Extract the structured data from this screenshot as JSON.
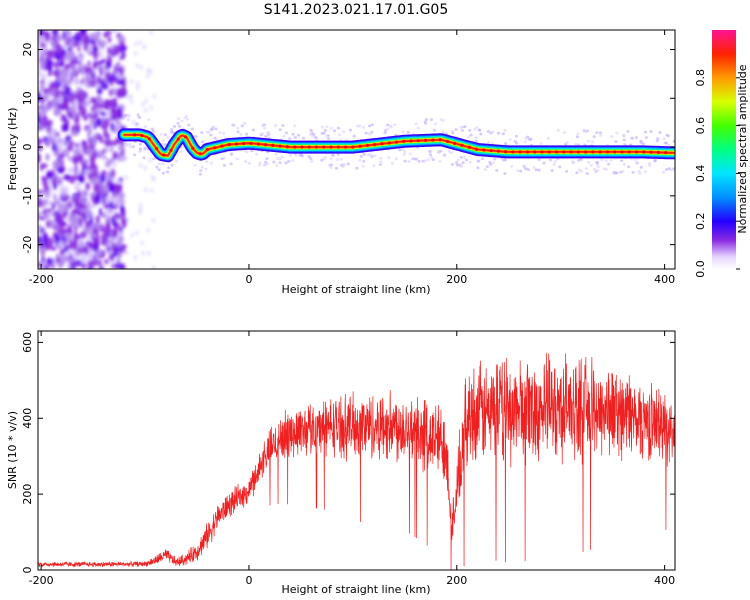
{
  "title": "S141.2023.021.17.01.G05",
  "chart_data": [
    {
      "type": "heatmap",
      "xlabel": "Height of straight line (km)",
      "ylabel": "Frequency (Hz)",
      "xlim": [
        -203,
        410
      ],
      "ylim": [
        -25,
        24
      ],
      "xticks": [
        -200,
        0,
        200,
        400
      ],
      "yticks": [
        -20,
        -10,
        0,
        10,
        20
      ],
      "colorbar": {
        "label": "Normalized spectral amplitude",
        "range": [
          0,
          1
        ],
        "ticks": [
          0.0,
          0.2,
          0.4,
          0.6,
          0.8
        ]
      },
      "noise_region_x": [
        -203,
        -120
      ],
      "frequency_ridge": {
        "x": [
          -120,
          -105,
          -97,
          -90,
          -85,
          -78,
          -72,
          -65,
          -60,
          -55,
          -50,
          -45,
          -40,
          -30,
          -20,
          0,
          40,
          100,
          150,
          185,
          220,
          250,
          300,
          350,
          380,
          410
        ],
        "y": [
          2.5,
          2.5,
          2.0,
          0.0,
          -1.5,
          -1.8,
          0.5,
          2.5,
          2.0,
          0.0,
          -1.2,
          -1.5,
          -0.5,
          0.0,
          0.5,
          0.8,
          0.0,
          0.0,
          1.2,
          1.5,
          -0.5,
          -1.0,
          -1.0,
          -1.0,
          -1.0,
          -1.2
        ]
      }
    },
    {
      "type": "line",
      "xlabel": "Height of straight line (km)",
      "ylabel": "SNR (10 * v/v)",
      "xlim": [
        -203,
        410
      ],
      "ylim": [
        0,
        630
      ],
      "xticks": [
        -200,
        0,
        200,
        400
      ],
      "yticks": [
        0,
        200,
        400,
        600
      ],
      "series": [
        {
          "color": "#ee2020",
          "x": [
            -203,
            -150,
            -100,
            -90,
            -80,
            -70,
            -60,
            -50,
            -40,
            -30,
            -20,
            -10,
            0,
            10,
            20,
            30,
            50,
            80,
            100,
            150,
            190,
            195,
            200,
            210,
            250,
            300,
            350,
            400,
            410
          ],
          "mean": [
            15,
            15,
            16,
            25,
            40,
            20,
            30,
            50,
            90,
            140,
            170,
            190,
            210,
            270,
            320,
            350,
            370,
            380,
            380,
            380,
            330,
            120,
            200,
            410,
            420,
            430,
            420,
            380,
            360
          ],
          "spread": [
            8,
            8,
            8,
            15,
            20,
            15,
            20,
            30,
            40,
            40,
            40,
            40,
            40,
            50,
            60,
            70,
            80,
            90,
            100,
            110,
            120,
            60,
            100,
            150,
            160,
            160,
            140,
            110,
            100
          ]
        }
      ]
    }
  ]
}
